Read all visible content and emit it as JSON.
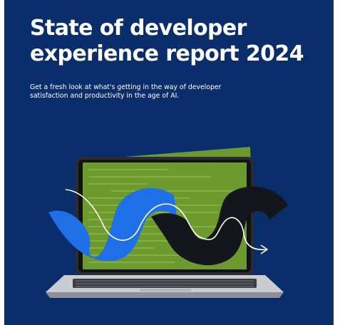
{
  "report": {
    "title_line_1": "State of developer",
    "title_line_2": "experience report 2024",
    "subtitle": "Get a fresh look at what's getting in the way of developer satisfaction and productivity in the age of AI."
  },
  "colors": {
    "background": "#0a2d6b",
    "screen_green": "#6c9a2e",
    "accent_blue": "#1f6fe8",
    "accent_black": "#14161b",
    "laptop_silver": "#c9ccd1"
  },
  "illustration": {
    "icons": [
      "laptop-icon",
      "code-screen-icon",
      "blue-wave-shape",
      "black-wave-shape",
      "white-arrow-line"
    ]
  }
}
